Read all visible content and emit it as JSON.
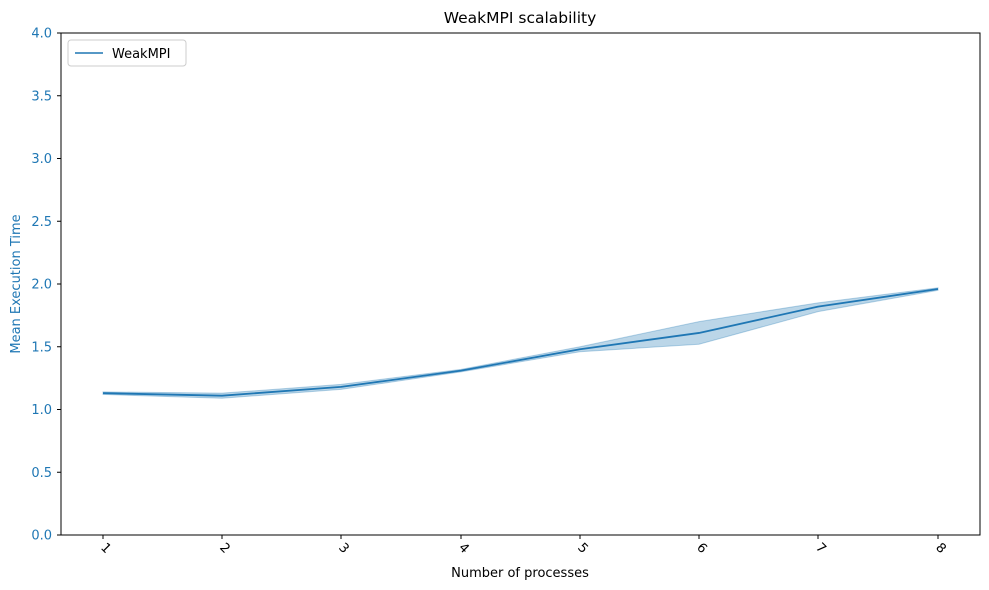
{
  "chart_data": {
    "type": "line",
    "title": "WeakMPI scalability",
    "xlabel": "Number of processes",
    "ylabel": "Mean Execution Time",
    "x": [
      1,
      2,
      3,
      4,
      5,
      6,
      7,
      8
    ],
    "x_tick_labels": [
      "1",
      "2",
      "3",
      "4",
      "5",
      "6",
      "7",
      "8"
    ],
    "y_ticks": [
      "0.0",
      "0.5",
      "1.0",
      "1.5",
      "2.0",
      "2.5",
      "3.0",
      "3.5",
      "4.0"
    ],
    "ylim": [
      0,
      4
    ],
    "grid": false,
    "legend_position": "top-left",
    "series": [
      {
        "name": "WeakMPI",
        "values": [
          1.13,
          1.11,
          1.18,
          1.31,
          1.48,
          1.61,
          1.82,
          1.96
        ],
        "ci_lower": [
          1.12,
          1.09,
          1.16,
          1.3,
          1.46,
          1.52,
          1.78,
          1.95
        ],
        "ci_upper": [
          1.14,
          1.13,
          1.2,
          1.32,
          1.5,
          1.7,
          1.85,
          1.97
        ],
        "color": "#1f77b4"
      }
    ],
    "ylabel_color": "#1f77b4",
    "ytick_color": "#1f77b4"
  }
}
